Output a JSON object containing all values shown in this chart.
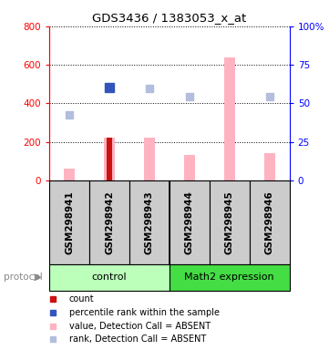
{
  "title": "GDS3436 / 1383053_x_at",
  "samples": [
    "GSM298941",
    "GSM298942",
    "GSM298943",
    "GSM298944",
    "GSM298945",
    "GSM298946"
  ],
  "value_bars": [
    60,
    220,
    220,
    130,
    640,
    140
  ],
  "count_bars": [
    0,
    220,
    0,
    0,
    0,
    0
  ],
  "rank_dots": [
    340,
    480,
    475,
    435,
    null,
    435
  ],
  "percentile_dots": [
    null,
    480,
    null,
    null,
    null,
    null
  ],
  "ylim_left": [
    0,
    800
  ],
  "ylim_right": [
    0,
    100
  ],
  "yticks_left": [
    0,
    200,
    400,
    600,
    800
  ],
  "yticks_right": [
    0,
    25,
    50,
    75,
    100
  ],
  "ytick_labels_right": [
    "0",
    "25",
    "50",
    "75",
    "100%"
  ],
  "groups": [
    {
      "label": "control",
      "color": "#bbffbb",
      "start": 0,
      "end": 3
    },
    {
      "label": "Math2 expression",
      "color": "#44dd44",
      "start": 3,
      "end": 6
    }
  ],
  "protocol_label": "protocol",
  "bar_color_value": "#ffb3c1",
  "bar_color_count": "#cc1111",
  "dot_color_rank": "#b3bedd",
  "dot_color_percentile": "#3355bb",
  "background_labels": "#cccccc",
  "legend_items": [
    {
      "color": "#cc1111",
      "label": "count"
    },
    {
      "color": "#3355bb",
      "label": "percentile rank within the sample"
    },
    {
      "color": "#ffb3c1",
      "label": "value, Detection Call = ABSENT"
    },
    {
      "color": "#b3bedd",
      "label": "rank, Detection Call = ABSENT"
    }
  ]
}
